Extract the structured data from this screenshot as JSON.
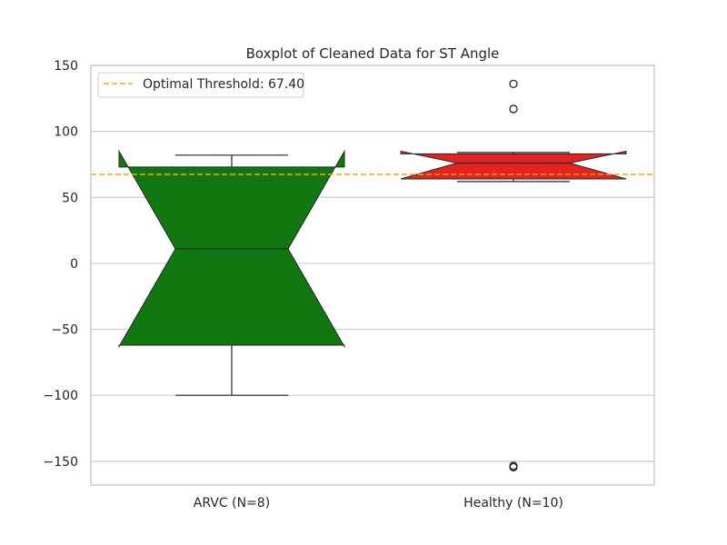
{
  "chart_data": {
    "type": "boxplot",
    "title": "Boxplot of Cleaned Data for ST Angle",
    "xlabel": "",
    "ylabel": "",
    "ylim": [
      -168,
      150
    ],
    "yticks": [
      -150,
      -100,
      -50,
      0,
      50,
      100,
      150
    ],
    "grid": true,
    "notched": true,
    "categories": [
      "ARVC (N=8)",
      "Healthy (N=10)"
    ],
    "boxes": [
      {
        "category": "ARVC (N=8)",
        "color": "#117711",
        "q1": -62,
        "median": 11,
        "q3": 73,
        "notch_low": -63,
        "notch_high": 85,
        "whisker_low": -100,
        "whisker_high": 82,
        "outliers": []
      },
      {
        "category": "Healthy (N=10)",
        "color": "#E32222",
        "q1": 64,
        "median": 76,
        "q3": 83,
        "notch_low": 64,
        "notch_high": 85,
        "whisker_low": 62,
        "whisker_high": 84,
        "outliers": [
          136,
          117,
          -153.5,
          -154.5
        ]
      }
    ],
    "threshold": {
      "label": "Optimal Threshold: 67.40",
      "value": 67.4,
      "color": "#FFA500",
      "style": "dashed"
    },
    "legend_position": "top-left"
  }
}
